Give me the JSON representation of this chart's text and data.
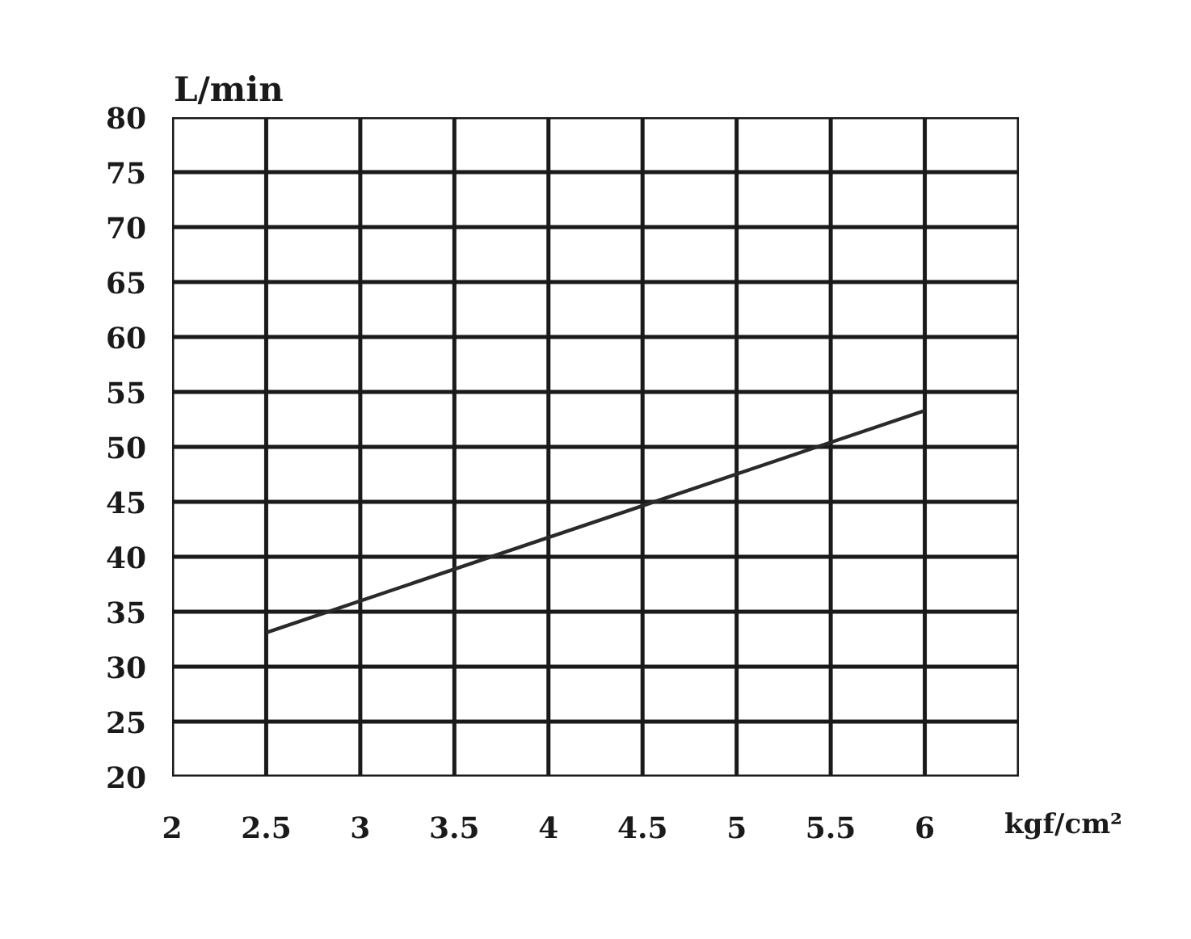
{
  "chart_data": {
    "type": "line",
    "xlabel": "kgf/cm²",
    "ylabel": "L/min",
    "x": [
      2.5,
      6
    ],
    "series": [
      {
        "color": "#2a2a2a",
        "values": [
          33.1,
          53.3
        ]
      }
    ],
    "xlim": [
      2,
      6.5
    ],
    "ylim": [
      20,
      80
    ],
    "xticks": [
      2,
      2.5,
      3,
      3.5,
      4,
      4.5,
      5,
      5.5,
      6,
      {
        "value": 6.5,
        "label": null
      }
    ],
    "yticks": [
      20,
      25,
      30,
      35,
      40,
      45,
      50,
      55,
      60,
      65,
      70,
      75,
      80
    ],
    "grid": true,
    "line_style": "solid"
  }
}
